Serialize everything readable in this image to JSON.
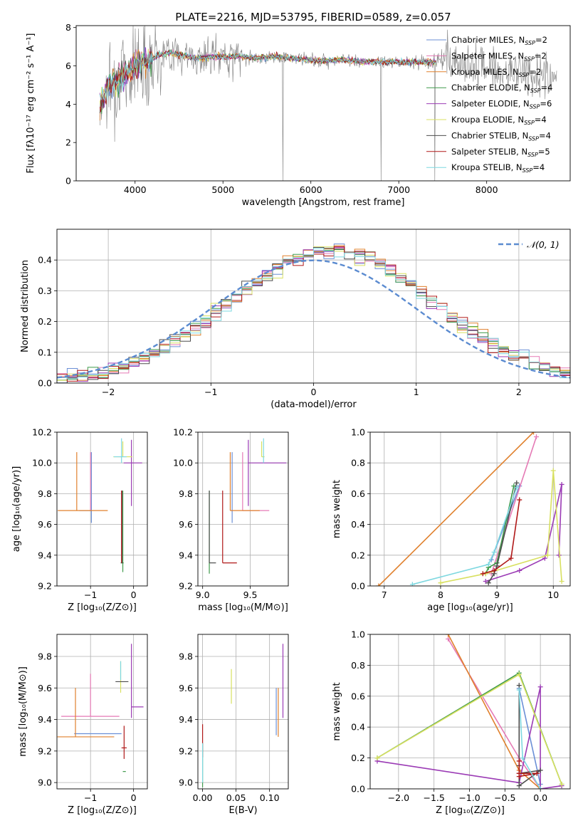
{
  "figure": {
    "title": "PLATE=2216, MJD=53795, FIBERID=0589, z=0.057"
  },
  "colors": {
    "spectrum_data": "#808080",
    "grid": "#b0b0b0",
    "normal_curve": "#5b8bd0"
  },
  "models": [
    {
      "name": "Chabrier MILES",
      "nssp": "2",
      "color": "#6b8fd6"
    },
    {
      "name": "Salpeter MILES",
      "nssp": "2",
      "color": "#e57ab5"
    },
    {
      "name": "Kroupa MILES",
      "nssp": "2",
      "color": "#e0812e"
    },
    {
      "name": "Chabrier ELODIE",
      "nssp": "4",
      "color": "#3f9a4a"
    },
    {
      "name": "Salpeter ELODIE",
      "nssp": "6",
      "color": "#9b3bb5"
    },
    {
      "name": "Kroupa ELODIE",
      "nssp": "4",
      "color": "#d8e060"
    },
    {
      "name": "Chabrier STELIB",
      "nssp": "4",
      "color": "#4d4d4d"
    },
    {
      "name": "Salpeter STELIB",
      "nssp": "5",
      "color": "#b01818"
    },
    {
      "name": "Kroupa STELIB",
      "nssp": "4",
      "color": "#7ed8e0"
    }
  ],
  "chart_data": [
    {
      "id": "spectrum",
      "type": "line",
      "xlabel": "wavelength [Angstrom, rest frame]",
      "ylabel": "Flux [fλ10⁻¹⁷ erg cm⁻² s⁻¹ A⁻¹]",
      "xlim": [
        3330,
        8950
      ],
      "ylim": [
        0,
        8.1
      ],
      "xticks": [
        "4000",
        "5000",
        "6000",
        "7000",
        "8000"
      ],
      "yticks": [
        "0",
        "2",
        "4",
        "6",
        "8"
      ],
      "grid": false,
      "legend": "right",
      "x": [
        3600,
        3700,
        3800,
        3900,
        4000,
        4100,
        4200,
        4300,
        4400,
        4500,
        4600,
        4700,
        4800,
        4900,
        5000,
        5200,
        5400,
        5600,
        5800,
        6000,
        6200,
        6400,
        6600,
        6800,
        7000,
        7200,
        7400,
        7600,
        7800,
        8000,
        8200,
        8400,
        8600,
        8800
      ],
      "model_flux": [
        4.0,
        5.0,
        5.3,
        5.6,
        6.0,
        6.3,
        6.4,
        6.6,
        6.7,
        6.6,
        6.5,
        6.4,
        6.4,
        6.5,
        6.5,
        6.5,
        6.4,
        6.5,
        6.4,
        6.3,
        6.3,
        6.3,
        6.2,
        6.2,
        6.2,
        6.2,
        6.2,
        6.2,
        6.1,
        6.0,
        5.7,
        5.6,
        5.5,
        5.4
      ]
    },
    {
      "id": "residuals",
      "type": "histogram",
      "xlabel": "(data-model)/error",
      "ylabel": "Normed distribution",
      "xlim": [
        -2.5,
        2.5
      ],
      "ylim": [
        0,
        0.5
      ],
      "xticks": [
        "−2",
        "−1",
        "0",
        "1",
        "2"
      ],
      "yticks": [
        "0.0",
        "0.1",
        "0.2",
        "0.3",
        "0.4"
      ],
      "grid": true,
      "legend": "top-right",
      "normal_label": "𝒩(0, 1)",
      "bin_width": 0.1
    },
    {
      "id": "age-vs-z",
      "type": "errorbar",
      "xlabel": "Z [log₁₀(Z/Z⊙)]",
      "ylabel": "age  [log₁₀(age/yr)]",
      "xlim": [
        -1.78,
        0.32
      ],
      "ylim": [
        9.2,
        10.2
      ],
      "xticks": [
        "−1",
        "0"
      ],
      "yticks": [
        "9.2",
        "9.4",
        "9.6",
        "9.8",
        "10.0",
        "10.2"
      ],
      "grid": true,
      "points": [
        {
          "m": 0,
          "x": -0.98,
          "y": 9.69,
          "xerr": [
            0.28,
            0.0
          ],
          "yerr": [
            0.08,
            0.38
          ]
        },
        {
          "m": 1,
          "x": -1.0,
          "y": 9.69,
          "xerr": [
            0.0,
            0.0
          ],
          "yerr": [
            0.0,
            0.38
          ]
        },
        {
          "m": 2,
          "x": -1.32,
          "y": 9.69,
          "xerr": [
            0.44,
            0.72
          ],
          "yerr": [
            0.0,
            0.38
          ]
        },
        {
          "m": 3,
          "x": -0.25,
          "y": 9.35,
          "xerr": [
            0.05,
            0.02
          ],
          "yerr": [
            0.06,
            0.47
          ]
        },
        {
          "m": 4,
          "x": -0.05,
          "y": 10.0,
          "xerr": [
            0.18,
            0.25
          ],
          "yerr": [
            0.28,
            0.15
          ]
        },
        {
          "m": 5,
          "x": -0.25,
          "y": 10.04,
          "xerr": [
            0.22,
            0.22
          ],
          "yerr": [
            0.0,
            0.1
          ]
        },
        {
          "m": 6,
          "x": -0.27,
          "y": 9.35,
          "xerr": [
            0.02,
            0.02
          ],
          "yerr": [
            0.0,
            0.47
          ]
        },
        {
          "m": 7,
          "x": -0.28,
          "y": 9.35,
          "xerr": [
            0.0,
            0.0
          ],
          "yerr": [
            0.0,
            0.47
          ]
        },
        {
          "m": 8,
          "x": -0.28,
          "y": 10.04,
          "xerr": [
            0.18,
            0.12
          ],
          "yerr": [
            0.04,
            0.12
          ]
        }
      ]
    },
    {
      "id": "age-vs-mass",
      "type": "errorbar",
      "xlabel": "mass [log₁₀(M/M⊙)]",
      "ylabel": "",
      "xlim": [
        8.95,
        9.9
      ],
      "ylim": [
        9.2,
        10.2
      ],
      "xticks": [
        "9.0",
        "9.5"
      ],
      "yticks": [
        "9.2",
        "9.4",
        "9.6",
        "9.8",
        "10.0",
        "10.2"
      ],
      "grid": true,
      "points": [
        {
          "m": 0,
          "x": 9.31,
          "y": 9.69,
          "xerr": [
            0.0,
            0.0
          ],
          "yerr": [
            0.08,
            0.38
          ]
        },
        {
          "m": 1,
          "x": 9.42,
          "y": 9.69,
          "xerr": [
            0.0,
            0.28
          ],
          "yerr": [
            0.0,
            0.38
          ]
        },
        {
          "m": 2,
          "x": 9.29,
          "y": 9.69,
          "xerr": [
            0.0,
            0.31
          ],
          "yerr": [
            0.0,
            0.38
          ]
        },
        {
          "m": 3,
          "x": 9.07,
          "y": 9.35,
          "xerr": [
            0.0,
            0.0
          ],
          "yerr": [
            0.07,
            0.47
          ]
        },
        {
          "m": 4,
          "x": 9.48,
          "y": 10.0,
          "xerr": [
            0.0,
            0.4
          ],
          "yerr": [
            0.28,
            0.15
          ]
        },
        {
          "m": 5,
          "x": 9.62,
          "y": 10.04,
          "xerr": [
            0.0,
            0.03
          ],
          "yerr": [
            0.0,
            0.1
          ]
        },
        {
          "m": 6,
          "x": 9.07,
          "y": 9.35,
          "xerr": [
            0.0,
            0.07
          ],
          "yerr": [
            0.0,
            0.47
          ]
        },
        {
          "m": 7,
          "x": 9.21,
          "y": 9.35,
          "xerr": [
            0.0,
            0.15
          ],
          "yerr": [
            0.0,
            0.47
          ]
        },
        {
          "m": 8,
          "x": 9.64,
          "y": 10.04,
          "xerr": [
            0.0,
            0.0
          ],
          "yerr": [
            0.04,
            0.12
          ]
        }
      ]
    },
    {
      "id": "weight-vs-age",
      "type": "line",
      "xlabel": "age  [log₁₀(age/yr)]",
      "ylabel": "mass weight",
      "xlim": [
        6.75,
        10.3
      ],
      "ylim": [
        0,
        1
      ],
      "xticks": [
        "7",
        "8",
        "9",
        "10"
      ],
      "yticks": [
        "0.0",
        "0.2",
        "0.4",
        "0.6",
        "0.8",
        "1.0"
      ],
      "grid": true,
      "series": [
        {
          "m": 0,
          "x": [
            8.9,
            9.4
          ],
          "y": [
            0.17,
            0.65
          ]
        },
        {
          "m": 1,
          "x": [
            8.9,
            9.7
          ],
          "y": [
            0.08,
            0.97
          ]
        },
        {
          "m": 2,
          "x": [
            6.9,
            9.65
          ],
          "y": [
            0.0,
            1.0
          ]
        },
        {
          "m": 3,
          "x": [
            8.8,
            8.85,
            9.0,
            9.3
          ],
          "y": [
            0.08,
            0.12,
            0.15,
            0.65
          ]
        },
        {
          "m": 4,
          "x": [
            8.8,
            9.4,
            9.85,
            10.15,
            10.1
          ],
          "y": [
            0.03,
            0.1,
            0.18,
            0.66,
            0.2
          ]
        },
        {
          "m": 5,
          "x": [
            8.0,
            8.8,
            9.9,
            10.0,
            10.15
          ],
          "y": [
            0.02,
            0.08,
            0.2,
            0.75,
            0.03
          ]
        },
        {
          "m": 6,
          "x": [
            8.85,
            8.95,
            9.0,
            9.35
          ],
          "y": [
            0.02,
            0.08,
            0.13,
            0.67
          ]
        },
        {
          "m": 7,
          "x": [
            8.75,
            8.95,
            9.25,
            9.4
          ],
          "y": [
            0.08,
            0.1,
            0.18,
            0.56
          ]
        },
        {
          "m": 8,
          "x": [
            7.5,
            8.85,
            8.95,
            9.35
          ],
          "y": [
            0.01,
            0.14,
            0.22,
            0.64
          ]
        }
      ]
    },
    {
      "id": "mass-vs-z",
      "type": "errorbar",
      "xlabel": "Z [log₁₀(Z/Z⊙)]",
      "ylabel": "mass [log₁₀(M/M⊙)]",
      "xlim": [
        -1.78,
        0.32
      ],
      "ylim": [
        8.96,
        9.94
      ],
      "xticks": [
        "−1",
        "0"
      ],
      "yticks": [
        "9.0",
        "9.2",
        "9.4",
        "9.6",
        "9.8"
      ],
      "grid": true,
      "points": [
        {
          "m": 0,
          "x": -0.98,
          "y": 9.31,
          "xerr": [
            0.4,
            0.7
          ],
          "yerr": [
            0.0,
            0.0
          ]
        },
        {
          "m": 1,
          "x": -1.0,
          "y": 9.42,
          "xerr": [
            0.68,
            0.67
          ],
          "yerr": [
            0.0,
            0.27
          ]
        },
        {
          "m": 2,
          "x": -1.35,
          "y": 9.29,
          "xerr": [
            0.42,
            0.9
          ],
          "yerr": [
            0.0,
            0.31
          ]
        },
        {
          "m": 3,
          "x": -0.2,
          "y": 9.07,
          "xerr": [
            0.05,
            0.02
          ],
          "yerr": [
            0.0,
            0.0
          ]
        },
        {
          "m": 4,
          "x": -0.05,
          "y": 9.48,
          "xerr": [
            0.0,
            0.28
          ],
          "yerr": [
            0.07,
            0.4
          ]
        },
        {
          "m": 5,
          "x": -0.3,
          "y": 9.62,
          "xerr": [
            0.0,
            0.0
          ],
          "yerr": [
            0.05,
            0.15
          ]
        },
        {
          "m": 6,
          "x": -0.27,
          "y": 9.64,
          "xerr": [
            0.15,
            0.15
          ],
          "yerr": [
            0.0,
            0.0
          ]
        },
        {
          "m": 7,
          "x": -0.22,
          "y": 9.22,
          "xerr": [
            0.06,
            0.06
          ],
          "yerr": [
            0.07,
            0.14
          ]
        },
        {
          "m": 8,
          "x": -0.3,
          "y": 9.65,
          "xerr": [
            0.0,
            0.0
          ],
          "yerr": [
            0.0,
            0.12
          ]
        }
      ]
    },
    {
      "id": "mass-vs-ebv",
      "type": "errorbar",
      "xlabel": "E(B-V)",
      "ylabel": "",
      "xlim": [
        -0.007,
        0.128
      ],
      "ylim": [
        8.96,
        9.94
      ],
      "xticks": [
        "0.00",
        "0.05",
        "0.10"
      ],
      "yticks": [
        "9.0",
        "9.2",
        "9.4",
        "9.6",
        "9.8"
      ],
      "grid": true,
      "points": [
        {
          "m": 0,
          "x": 0.11,
          "y": 9.3,
          "xerr": [
            0.0,
            0.0
          ],
          "yerr": [
            0.0,
            0.3
          ]
        },
        {
          "m": 2,
          "x": 0.113,
          "y": 9.29,
          "xerr": [
            0.0,
            0.0
          ],
          "yerr": [
            0.0,
            0.31
          ]
        },
        {
          "m": 4,
          "x": 0.12,
          "y": 9.41,
          "xerr": [
            0.0,
            0.0
          ],
          "yerr": [
            0.0,
            0.47
          ]
        },
        {
          "m": 5,
          "x": 0.043,
          "y": 9.6,
          "xerr": [
            0.0,
            0.0
          ],
          "yerr": [
            0.1,
            0.12
          ]
        },
        {
          "m": 3,
          "x": 0.0,
          "y": 9.07,
          "xerr": [
            0.0,
            0.0
          ],
          "yerr": [
            0.1,
            0.18
          ]
        },
        {
          "m": 7,
          "x": 0.0,
          "y": 9.22,
          "xerr": [
            0.0,
            0.0
          ],
          "yerr": [
            0.06,
            0.15
          ]
        },
        {
          "m": 8,
          "x": 0.0,
          "y": 9.1,
          "xerr": [
            0.0,
            0.0
          ],
          "yerr": [
            0.1,
            0.15
          ]
        }
      ]
    },
    {
      "id": "weight-vs-z",
      "type": "line",
      "xlabel": "Z [log₁₀(Z/Z⊙)]",
      "ylabel": "mass weight",
      "xlim": [
        -2.4,
        0.42
      ],
      "ylim": [
        0,
        1
      ],
      "xticks": [
        "−2.0",
        "−1.5",
        "−1.0",
        "−0.5",
        "0.0"
      ],
      "yticks": [
        "0.0",
        "0.2",
        "0.4",
        "0.6",
        "0.8",
        "1.0"
      ],
      "grid": true,
      "series": [
        {
          "m": 0,
          "x": [
            -0.3,
            0.0
          ],
          "y": [
            0.65,
            0.03
          ]
        },
        {
          "m": 1,
          "x": [
            -1.3,
            -0.3,
            0.0
          ],
          "y": [
            0.97,
            0.2,
            0.0
          ]
        },
        {
          "m": 2,
          "x": [
            -1.3,
            -0.3,
            0.0
          ],
          "y": [
            1.0,
            0.12,
            0.0
          ]
        },
        {
          "m": 3,
          "x": [
            -2.3,
            -0.3,
            0.3
          ],
          "y": [
            0.2,
            0.75,
            0.03
          ]
        },
        {
          "m": 4,
          "x": [
            -2.3,
            -0.3,
            0.0,
            0.0,
            0.3
          ],
          "y": [
            0.18,
            0.04,
            0.66,
            0.0,
            0.02
          ]
        },
        {
          "m": 5,
          "x": [
            -2.3,
            -0.3,
            0.3
          ],
          "y": [
            0.2,
            0.74,
            0.03
          ]
        },
        {
          "m": 6,
          "x": [
            -0.3,
            -0.3,
            -0.3,
            0.0,
            -0.3
          ],
          "y": [
            0.67,
            0.15,
            0.02,
            0.12,
            0.1
          ]
        },
        {
          "m": 7,
          "x": [
            -0.3,
            -0.3,
            -0.05,
            -0.3
          ],
          "y": [
            0.18,
            0.08,
            0.1,
            0.1
          ]
        },
        {
          "m": 8,
          "x": [
            -0.3,
            -0.25,
            0.0
          ],
          "y": [
            0.64,
            0.2,
            0.0
          ]
        }
      ]
    }
  ]
}
